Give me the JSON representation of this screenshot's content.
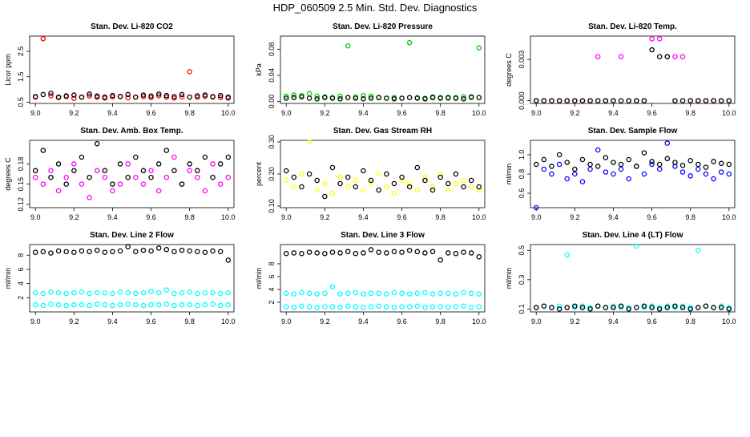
{
  "title": "HDP_060509  2.5 Min. Std. Dev. Diagnostics",
  "chart_data": [
    {
      "type": "scatter",
      "title": "Stan. Dev. Li-820 CO2",
      "y_label": "Licor ppm",
      "x": [
        9.0,
        9.04,
        9.08,
        9.12,
        9.16,
        9.2,
        9.24,
        9.28,
        9.32,
        9.36,
        9.4,
        9.44,
        9.48,
        9.52,
        9.56,
        9.6,
        9.64,
        9.68,
        9.72,
        9.76,
        9.8,
        9.84,
        9.88,
        9.92,
        9.96,
        10.0
      ],
      "xlim": [
        8.97,
        10.03
      ],
      "xticks": [
        {
          "value": 9,
          "label": "9.0"
        },
        9.2,
        9.4,
        9.6,
        9.8,
        {
          "value": 10,
          "label": "10.0"
        }
      ],
      "ylim": [
        0.45,
        3.1
      ],
      "yticks": [
        0.5,
        1.5,
        2.5
      ],
      "series": [
        {
          "color": "#ff0000",
          "values": [
            0.7,
            3.0,
            0.75,
            0.68,
            0.72,
            0.65,
            0.7,
            0.74,
            0.69,
            0.66,
            0.71,
            0.73,
            0.67,
            0.7,
            0.72,
            0.68,
            0.75,
            0.7,
            0.66,
            0.71,
            1.7,
            0.69,
            0.73,
            0.7,
            0.68,
            0.66
          ]
        },
        {
          "color": "#000000",
          "values": [
            0.72,
            0.8,
            0.85,
            0.7,
            0.75,
            0.78,
            0.7,
            0.82,
            0.74,
            0.7,
            0.76,
            0.72,
            0.8,
            0.7,
            0.78,
            0.74,
            0.82,
            0.76,
            0.72,
            0.8,
            0.7,
            0.75,
            0.78,
            0.72,
            0.76,
            0.7
          ]
        }
      ]
    },
    {
      "type": "scatter",
      "title": "Stan. Dev. Li-820 Pressure",
      "y_label": "kPa",
      "x": [
        9.0,
        9.04,
        9.08,
        9.12,
        9.16,
        9.2,
        9.24,
        9.28,
        9.32,
        9.36,
        9.4,
        9.44,
        9.48,
        9.52,
        9.56,
        9.6,
        9.64,
        9.68,
        9.72,
        9.76,
        9.8,
        9.84,
        9.88,
        9.92,
        9.96,
        10.0
      ],
      "xlim": [
        8.97,
        10.03
      ],
      "xticks": [
        {
          "value": 9,
          "label": "9.0"
        },
        9.2,
        9.4,
        9.6,
        9.8,
        {
          "value": 10,
          "label": "10.0"
        }
      ],
      "ylim": [
        -0.003,
        0.1
      ],
      "yticks": [
        {
          "value": 0,
          "label": "0.00"
        },
        0.04,
        0.08
      ],
      "series": [
        {
          "color": "#00cc00",
          "values": [
            0.008,
            0.01,
            0.009,
            0.012,
            0.008,
            0.007,
            0.006,
            0.008,
            0.085,
            0.007,
            0.009,
            0.008,
            0.006,
            0.005,
            0.006,
            0.005,
            0.09,
            0.006,
            0.005,
            0.007,
            0.006,
            0.005,
            0.006,
            0.007,
            0.006,
            0.082
          ]
        },
        {
          "color": "#000000",
          "values": [
            0.005,
            0.006,
            0.007,
            0.005,
            0.004,
            0.006,
            0.005,
            0.004,
            0.006,
            0.005,
            0.004,
            0.005,
            0.006,
            0.005,
            0.004,
            0.005,
            0.006,
            0.005,
            0.004,
            0.006,
            0.005,
            0.006,
            0.005,
            0.004,
            0.007,
            0.006
          ]
        }
      ]
    },
    {
      "type": "scatter",
      "title": "Stan. Dev. Li-820 Temp.",
      "y_label": "degrees C",
      "x": [
        9.0,
        9.04,
        9.08,
        9.12,
        9.16,
        9.2,
        9.24,
        9.28,
        9.32,
        9.36,
        9.4,
        9.44,
        9.48,
        9.52,
        9.56,
        9.6,
        9.64,
        9.68,
        9.72,
        9.76,
        9.8,
        9.84,
        9.88,
        9.92,
        9.96,
        10.0
      ],
      "xlim": [
        8.97,
        10.03
      ],
      "xticks": [
        {
          "value": 9,
          "label": "9.0"
        },
        9.2,
        9.4,
        9.6,
        9.8,
        {
          "value": 10,
          "label": "10.0"
        }
      ],
      "ylim": [
        -0.0002,
        0.0047
      ],
      "yticks": [
        {
          "value": 0,
          "label": "0.000"
        },
        0.003
      ],
      "series": [
        {
          "color": "#ff00ff",
          "values": [
            0,
            0,
            0,
            0,
            0,
            0,
            0,
            0,
            0.0032,
            0,
            0,
            0.0032,
            0,
            0,
            0,
            0.0045,
            0.0045,
            0.0032,
            0.0032,
            0.0032,
            0,
            0,
            0,
            0,
            0,
            0
          ]
        },
        {
          "color": "#000000",
          "values": [
            0,
            0,
            0,
            0,
            0,
            0,
            0,
            0,
            0,
            0,
            0,
            0,
            0,
            0,
            0,
            0.0037,
            0.0032,
            0.0032,
            0,
            0,
            0,
            0,
            0,
            0,
            0,
            0
          ]
        }
      ]
    },
    {
      "type": "scatter",
      "title": "Stan. Dev. Amb. Box Temp.",
      "y_label": "degrees C",
      "x": [
        9.0,
        9.04,
        9.08,
        9.12,
        9.16,
        9.2,
        9.24,
        9.28,
        9.32,
        9.36,
        9.4,
        9.44,
        9.48,
        9.52,
        9.56,
        9.6,
        9.64,
        9.68,
        9.72,
        9.76,
        9.8,
        9.84,
        9.88,
        9.92,
        9.96,
        10.0
      ],
      "xlim": [
        8.97,
        10.03
      ],
      "xticks": [
        {
          "value": 9,
          "label": "9.0"
        },
        9.2,
        9.4,
        9.6,
        9.8,
        {
          "value": 10,
          "label": "10.0"
        }
      ],
      "ylim": [
        0.115,
        0.215
      ],
      "yticks": [
        0.12,
        0.15,
        0.18
      ],
      "series": [
        {
          "color": "#ff00ff",
          "values": [
            0.16,
            0.15,
            0.17,
            0.14,
            0.16,
            0.18,
            0.15,
            0.13,
            0.17,
            0.16,
            0.14,
            0.15,
            0.18,
            0.16,
            0.15,
            0.17,
            0.14,
            0.16,
            0.19,
            0.15,
            0.17,
            0.16,
            0.14,
            0.18,
            0.15,
            0.16
          ]
        },
        {
          "color": "#000000",
          "values": [
            0.17,
            0.2,
            0.16,
            0.18,
            0.15,
            0.17,
            0.19,
            0.16,
            0.21,
            0.17,
            0.15,
            0.18,
            0.16,
            0.19,
            0.17,
            0.16,
            0.18,
            0.2,
            0.17,
            0.15,
            0.18,
            0.17,
            0.19,
            0.16,
            0.18,
            0.19
          ]
        }
      ]
    },
    {
      "type": "scatter",
      "title": "Stan. Dev. Gas Stream RH",
      "y_label": "percent",
      "x": [
        9.0,
        9.04,
        9.08,
        9.12,
        9.16,
        9.2,
        9.24,
        9.28,
        9.32,
        9.36,
        9.4,
        9.44,
        9.48,
        9.52,
        9.56,
        9.6,
        9.64,
        9.68,
        9.72,
        9.76,
        9.8,
        9.84,
        9.88,
        9.92,
        9.96,
        10.0
      ],
      "xlim": [
        8.97,
        10.03
      ],
      "xticks": [
        {
          "value": 9,
          "label": "9.0"
        },
        9.2,
        9.4,
        9.6,
        9.8,
        {
          "value": 10,
          "label": "10.0"
        }
      ],
      "ylim": [
        0.095,
        0.305
      ],
      "yticks": [
        {
          "value": 0.1,
          "label": "0.10"
        },
        {
          "value": 0.2,
          "label": "0.20"
        },
        {
          "value": 0.3,
          "label": "0.30"
        }
      ],
      "series": [
        {
          "color": "#ffff00",
          "values": [
            0.18,
            0.16,
            0.2,
            0.3,
            0.15,
            0.17,
            0.14,
            0.19,
            0.16,
            0.18,
            0.15,
            0.17,
            0.2,
            0.16,
            0.14,
            0.18,
            0.17,
            0.15,
            0.19,
            0.16,
            0.2,
            0.15,
            0.17,
            0.18,
            0.16,
            0.15
          ]
        },
        {
          "color": "#000000",
          "values": [
            0.21,
            0.19,
            0.16,
            0.2,
            0.18,
            0.13,
            0.22,
            0.17,
            0.19,
            0.16,
            0.21,
            0.18,
            0.15,
            0.2,
            0.17,
            0.19,
            0.16,
            0.22,
            0.18,
            0.15,
            0.19,
            0.17,
            0.2,
            0.16,
            0.18,
            0.16
          ]
        }
      ]
    },
    {
      "type": "scatter",
      "title": "Stan. Dev. Sample Flow",
      "y_label": "ml/min",
      "x": [
        9.0,
        9.04,
        9.08,
        9.12,
        9.16,
        9.2,
        9.24,
        9.28,
        9.32,
        9.36,
        9.4,
        9.44,
        9.48,
        9.52,
        9.56,
        9.6,
        9.64,
        9.68,
        9.72,
        9.76,
        9.8,
        9.84,
        9.88,
        9.92,
        9.96,
        10.0
      ],
      "xlim": [
        8.97,
        10.03
      ],
      "xticks": [
        {
          "value": 9,
          "label": "9.0"
        },
        9.2,
        9.4,
        9.6,
        9.8,
        {
          "value": 10,
          "label": "10.0"
        }
      ],
      "ylim": [
        0.45,
        1.15
      ],
      "yticks": [
        0.6,
        0.8,
        {
          "value": 1,
          "label": "1.0"
        }
      ],
      "series": [
        {
          "color": "#0000ff",
          "values": [
            0.45,
            0.85,
            0.8,
            0.9,
            0.75,
            0.8,
            0.72,
            0.85,
            1.05,
            0.82,
            0.8,
            0.85,
            0.75,
            0.88,
            0.8,
            0.9,
            0.85,
            1.12,
            0.88,
            0.82,
            0.78,
            0.85,
            0.8,
            0.75,
            0.82,
            0.8
          ]
        },
        {
          "color": "#000000",
          "values": [
            0.9,
            0.95,
            0.88,
            1.0,
            0.92,
            0.85,
            0.95,
            0.9,
            0.88,
            0.97,
            0.92,
            0.9,
            0.95,
            0.88,
            1.02,
            0.93,
            0.9,
            0.96,
            0.92,
            0.89,
            0.94,
            0.9,
            0.87,
            0.93,
            0.91,
            0.9
          ]
        }
      ]
    },
    {
      "type": "scatter",
      "title": "Stan. Dev. Line 2 Flow",
      "y_label": "ml/min",
      "x": [
        9.0,
        9.04,
        9.08,
        9.12,
        9.16,
        9.2,
        9.24,
        9.28,
        9.32,
        9.36,
        9.4,
        9.44,
        9.48,
        9.52,
        9.56,
        9.6,
        9.64,
        9.68,
        9.72,
        9.76,
        9.8,
        9.84,
        9.88,
        9.92,
        9.96,
        10.0
      ],
      "xlim": [
        8.97,
        10.03
      ],
      "xticks": [
        {
          "value": 9,
          "label": "9.0"
        },
        9.2,
        9.4,
        9.6,
        9.8,
        {
          "value": 10,
          "label": "10.0"
        }
      ],
      "ylim": [
        0,
        9.5
      ],
      "yticks": [
        2,
        4,
        6,
        8
      ],
      "series": [
        {
          "color": "#00ffff",
          "values": [
            2.7,
            2.6,
            2.8,
            2.7,
            2.6,
            2.7,
            2.8,
            2.6,
            2.7,
            2.7,
            2.6,
            2.8,
            2.7,
            2.6,
            2.7,
            2.9,
            2.7,
            3.1,
            2.6,
            2.7,
            2.8,
            2.6,
            2.7,
            2.7,
            2.6,
            2.7
          ]
        },
        {
          "color": "#00ffff",
          "values": [
            1.0,
            0.9,
            1.1,
            1.0,
            0.9,
            1.0,
            1.0,
            0.9,
            1.1,
            1.0,
            0.9,
            1.0,
            1.1,
            1.0,
            0.9,
            1.0,
            1.0,
            1.1,
            0.9,
            1.0,
            1.0,
            0.9,
            1.0,
            1.1,
            0.9,
            1.0
          ]
        },
        {
          "color": "#000000",
          "values": [
            8.4,
            8.5,
            8.3,
            8.6,
            8.5,
            8.4,
            8.6,
            8.5,
            8.7,
            8.4,
            8.5,
            8.6,
            9.2,
            8.5,
            8.7,
            8.6,
            9.0,
            8.8,
            8.5,
            8.7,
            8.6,
            8.5,
            8.4,
            8.6,
            8.5,
            7.3
          ]
        }
      ]
    },
    {
      "type": "scatter",
      "title": "Stan. Dev. Line 3 Flow",
      "y_label": "ml/min",
      "x": [
        9.0,
        9.04,
        9.08,
        9.12,
        9.16,
        9.2,
        9.24,
        9.28,
        9.32,
        9.36,
        9.4,
        9.44,
        9.48,
        9.52,
        9.56,
        9.6,
        9.64,
        9.68,
        9.72,
        9.76,
        9.8,
        9.84,
        9.88,
        9.92,
        9.96,
        10.0
      ],
      "xlim": [
        8.97,
        10.03
      ],
      "xticks": [
        {
          "value": 9,
          "label": "9.0"
        },
        9.2,
        9.4,
        9.6,
        9.8,
        {
          "value": 10,
          "label": "10.0"
        }
      ],
      "ylim": [
        0.5,
        11
      ],
      "yticks": [
        2,
        4,
        6,
        8
      ],
      "series": [
        {
          "color": "#00ffff",
          "values": [
            3.4,
            3.3,
            3.5,
            3.4,
            3.3,
            3.4,
            4.4,
            3.3,
            3.4,
            3.5,
            3.3,
            3.4,
            3.4,
            3.3,
            3.5,
            3.4,
            3.3,
            3.4,
            3.5,
            3.3,
            3.4,
            3.4,
            3.3,
            3.5,
            3.4,
            3.3
          ]
        },
        {
          "color": "#00ffff",
          "values": [
            1.3,
            1.2,
            1.4,
            1.3,
            1.2,
            1.3,
            1.3,
            1.2,
            1.4,
            1.3,
            1.2,
            1.3,
            1.4,
            1.3,
            1.2,
            1.3,
            1.3,
            1.4,
            1.2,
            1.3,
            1.3,
            1.2,
            1.3,
            1.4,
            1.2,
            1.3
          ]
        },
        {
          "color": "#000000",
          "values": [
            9.6,
            9.7,
            9.6,
            9.8,
            9.7,
            9.6,
            9.8,
            9.7,
            9.9,
            9.6,
            9.7,
            10.2,
            9.8,
            9.7,
            9.9,
            9.8,
            10.1,
            9.9,
            9.7,
            9.9,
            8.6,
            9.7,
            9.6,
            9.8,
            9.7,
            9.1
          ]
        }
      ]
    },
    {
      "type": "scatter",
      "title": "Stan. Dev. Line 4 (LT) Flow",
      "y_label": "ml/min",
      "x": [
        9.0,
        9.04,
        9.08,
        9.12,
        9.16,
        9.2,
        9.24,
        9.28,
        9.32,
        9.36,
        9.4,
        9.44,
        9.48,
        9.52,
        9.56,
        9.6,
        9.64,
        9.68,
        9.72,
        9.76,
        9.8,
        9.84,
        9.88,
        9.92,
        9.96,
        10.0
      ],
      "xlim": [
        8.97,
        10.03
      ],
      "xticks": [
        {
          "value": 9,
          "label": "9.0"
        },
        9.2,
        9.4,
        9.6,
        9.8,
        {
          "value": 10,
          "label": "10.0"
        }
      ],
      "ylim": [
        0.08,
        0.54
      ],
      "yticks": [
        0.1,
        0.3,
        0.5
      ],
      "series": [
        {
          "color": "#00ffff",
          "values": [
            0.11,
            0.12,
            0.11,
            0.12,
            0.47,
            0.11,
            0.12,
            0.11,
            0.12,
            0.11,
            0.12,
            0.11,
            0.11,
            0.53,
            0.11,
            0.12,
            0.11,
            0.12,
            0.11,
            0.12,
            0.11,
            0.5,
            0.12,
            0.11,
            0.12,
            0.11
          ]
        },
        {
          "color": "#000000",
          "values": [
            0.11,
            0.12,
            0.11,
            0.1,
            0.11,
            0.12,
            0.11,
            0.1,
            0.12,
            0.11,
            0.11,
            0.12,
            0.1,
            0.11,
            0.12,
            0.11,
            0.1,
            0.11,
            0.12,
            0.11,
            0.1,
            0.11,
            0.12,
            0.11,
            0.11,
            0.1
          ]
        }
      ]
    }
  ]
}
